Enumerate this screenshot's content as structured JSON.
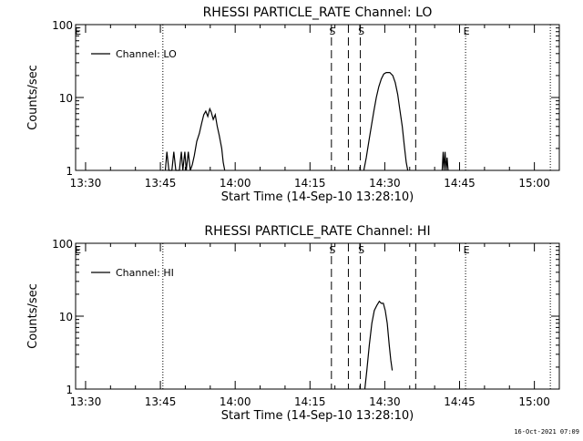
{
  "footer_timestamp": "16-Oct-2021 07:09",
  "chart_data": [
    {
      "type": "line",
      "title": "RHESSI PARTICLE_RATE Channel: LO",
      "xlabel": "Start Time (14-Sep-10 13:28:10)",
      "ylabel": "Counts/sec",
      "yscale": "log",
      "ylim": [
        1,
        100
      ],
      "xlim_min": [
        0,
        97
      ],
      "xticks_min": [
        2,
        17,
        32,
        47,
        62,
        77,
        92
      ],
      "xticklabels": [
        "13:30",
        "13:45",
        "14:00",
        "14:15",
        "14:30",
        "14:45",
        "15:00"
      ],
      "yticks": [
        1,
        10,
        100
      ],
      "yticklabels": [
        "1",
        "10",
        "100"
      ],
      "legend": {
        "position": "top-left",
        "entries": [
          "Channel: LO"
        ]
      },
      "series": [
        {
          "name": "Channel: LO",
          "segments": [
            [
              [
                18.0,
                1
              ],
              [
                18.3,
                1.8
              ],
              [
                18.7,
                1
              ],
              [
                19.3,
                1
              ],
              [
                19.7,
                1.8
              ],
              [
                20.1,
                1
              ],
              [
                20.8,
                1
              ],
              [
                21.2,
                1.8
              ],
              [
                21.5,
                1
              ],
              [
                21.9,
                1.8
              ],
              [
                22.2,
                1
              ],
              [
                22.6,
                1.8
              ],
              [
                23.0,
                1
              ],
              [
                23.4,
                1.2
              ],
              [
                23.8,
                1.6
              ],
              [
                24.3,
                2.5
              ],
              [
                24.8,
                3.2
              ],
              [
                25.3,
                4.5
              ],
              [
                25.7,
                5.8
              ],
              [
                26.1,
                6.5
              ],
              [
                26.5,
                5.5
              ],
              [
                26.9,
                7
              ],
              [
                27.2,
                6.3
              ],
              [
                27.6,
                5
              ],
              [
                28.0,
                5.8
              ],
              [
                28.4,
                4
              ],
              [
                28.8,
                3
              ],
              [
                29.3,
                2
              ],
              [
                29.6,
                1.3
              ],
              [
                29.9,
                1
              ]
            ],
            [
              [
                73.5,
                1
              ],
              [
                73.7,
                1.8
              ],
              [
                73.9,
                1
              ],
              [
                74.1,
                1.8
              ],
              [
                74.3,
                1
              ],
              [
                74.5,
                1.5
              ],
              [
                74.7,
                1
              ]
            ],
            [
              [
                57.8,
                1
              ],
              [
                58.3,
                1.5
              ],
              [
                58.8,
                2.5
              ],
              [
                59.3,
                4
              ],
              [
                59.8,
                6.5
              ],
              [
                60.3,
                10
              ],
              [
                60.8,
                14
              ],
              [
                61.3,
                18
              ],
              [
                61.8,
                21
              ],
              [
                62.3,
                22
              ],
              [
                63.0,
                22
              ],
              [
                63.6,
                20
              ],
              [
                64.1,
                16
              ],
              [
                64.6,
                11
              ],
              [
                65.0,
                7
              ],
              [
                65.5,
                4
              ],
              [
                65.9,
                2.2
              ],
              [
                66.3,
                1.3
              ],
              [
                66.6,
                1
              ]
            ]
          ]
        }
      ],
      "vlines_dotted": [
        17.5,
        78.2,
        95.2
      ],
      "vlines_dashed": [
        51.3,
        54.7,
        57.1,
        68.2
      ],
      "markers": [
        {
          "x": 0.3,
          "label": "E"
        },
        {
          "x": 51.3,
          "label": "S"
        },
        {
          "x": 57.1,
          "label": "S"
        },
        {
          "x": 78.2,
          "label": "E"
        }
      ]
    },
    {
      "type": "line",
      "title": "RHESSI PARTICLE_RATE Channel: HI",
      "xlabel": "Start Time (14-Sep-10 13:28:10)",
      "ylabel": "Counts/sec",
      "yscale": "log",
      "ylim": [
        1,
        100
      ],
      "xlim_min": [
        0,
        97
      ],
      "xticks_min": [
        2,
        17,
        32,
        47,
        62,
        77,
        92
      ],
      "xticklabels": [
        "13:30",
        "13:45",
        "14:00",
        "14:15",
        "14:30",
        "14:45",
        "15:00"
      ],
      "yticks": [
        1,
        10,
        100
      ],
      "yticklabels": [
        "1",
        "10",
        "100"
      ],
      "legend": {
        "position": "top-left",
        "entries": [
          "Channel: HI"
        ]
      },
      "series": [
        {
          "name": "Channel: HI",
          "segments": [
            [
              [
                58.0,
                1
              ],
              [
                58.4,
                1.8
              ],
              [
                58.9,
                4
              ],
              [
                59.4,
                8
              ],
              [
                59.9,
                12
              ],
              [
                60.4,
                14
              ],
              [
                60.9,
                16
              ],
              [
                61.3,
                15
              ],
              [
                61.7,
                15
              ],
              [
                62.1,
                12
              ],
              [
                62.5,
                8
              ],
              [
                62.9,
                4
              ],
              [
                63.2,
                2.5
              ],
              [
                63.5,
                1.8
              ]
            ]
          ]
        }
      ],
      "vlines_dotted": [
        17.5,
        78.2,
        95.2
      ],
      "vlines_dashed": [
        51.3,
        54.7,
        57.1,
        68.2
      ],
      "markers": [
        {
          "x": 0.3,
          "label": "E"
        },
        {
          "x": 51.3,
          "label": "S"
        },
        {
          "x": 57.1,
          "label": "S"
        },
        {
          "x": 78.2,
          "label": "E"
        }
      ]
    }
  ]
}
